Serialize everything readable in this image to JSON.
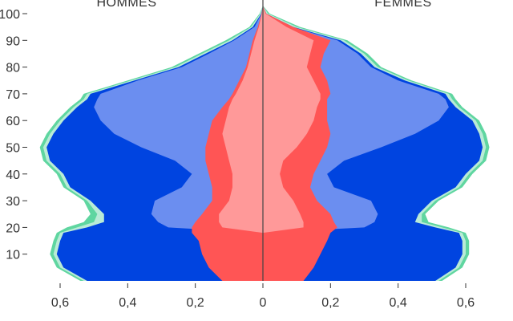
{
  "chart_data": {
    "type": "area",
    "headers": {
      "left": "HOMMES",
      "right": "FEMMES"
    },
    "y_ticks": [
      {
        "value": 10,
        "label": "10"
      },
      {
        "value": 20,
        "label": "20"
      },
      {
        "value": 30,
        "label": "30"
      },
      {
        "value": 40,
        "label": "40"
      },
      {
        "value": 50,
        "label": "50"
      },
      {
        "value": 60,
        "label": "60"
      },
      {
        "value": 70,
        "label": "70"
      },
      {
        "value": 80,
        "label": "80"
      },
      {
        "value": 90,
        "label": "90"
      },
      {
        "value": 100,
        "label": "100"
      }
    ],
    "x_ticks": [
      {
        "value": -0.6,
        "label": "0,6"
      },
      {
        "value": -0.4,
        "label": "0,4"
      },
      {
        "value": -0.2,
        "label": "0,2"
      },
      {
        "value": 0,
        "label": "0"
      },
      {
        "value": 0.2,
        "label": "0,2"
      },
      {
        "value": 0.4,
        "label": "0,4"
      },
      {
        "value": 0.6,
        "label": "0,6"
      }
    ],
    "ylim": [
      0,
      100
    ],
    "xlim": [
      -0.6,
      0.6
    ],
    "ages": [
      0,
      5,
      10,
      15,
      18,
      20,
      22,
      25,
      30,
      35,
      40,
      45,
      50,
      55,
      60,
      65,
      68,
      70,
      75,
      80,
      85,
      90,
      95,
      100,
      103
    ],
    "layers": [
      {
        "key": "outer",
        "color": "#5fd6a0",
        "male": [
          0.54,
          0.61,
          0.63,
          0.62,
          0.61,
          0.58,
          0.53,
          0.51,
          0.53,
          0.59,
          0.61,
          0.65,
          0.66,
          0.64,
          0.61,
          0.57,
          0.54,
          0.53,
          0.4,
          0.27,
          0.19,
          0.11,
          0.04,
          0.01,
          0.0
        ],
        "female": [
          0.53,
          0.59,
          0.61,
          0.61,
          0.6,
          0.55,
          0.49,
          0.48,
          0.52,
          0.59,
          0.62,
          0.66,
          0.67,
          0.66,
          0.64,
          0.59,
          0.57,
          0.56,
          0.44,
          0.35,
          0.31,
          0.25,
          0.11,
          0.02,
          0.0
        ]
      },
      {
        "key": "light-green",
        "color": "#b9ebd6",
        "male": [
          0.53,
          0.6,
          0.62,
          0.61,
          0.6,
          0.55,
          0.5,
          0.49,
          0.52,
          0.58,
          0.6,
          0.64,
          0.65,
          0.63,
          0.6,
          0.56,
          0.53,
          0.52,
          0.39,
          0.26,
          0.18,
          0.1,
          0.035,
          0.008,
          0.0
        ],
        "female": [
          0.52,
          0.58,
          0.6,
          0.6,
          0.59,
          0.53,
          0.47,
          0.47,
          0.51,
          0.58,
          0.61,
          0.65,
          0.66,
          0.65,
          0.63,
          0.58,
          0.56,
          0.55,
          0.43,
          0.34,
          0.3,
          0.24,
          0.1,
          0.015,
          0.0
        ]
      },
      {
        "key": "blue",
        "color": "#0044e0",
        "male": [
          0.52,
          0.59,
          0.61,
          0.6,
          0.59,
          0.52,
          0.47,
          0.47,
          0.51,
          0.57,
          0.59,
          0.63,
          0.64,
          0.62,
          0.59,
          0.55,
          0.52,
          0.51,
          0.38,
          0.25,
          0.17,
          0.09,
          0.03,
          0.005,
          0.0
        ],
        "female": [
          0.51,
          0.57,
          0.59,
          0.59,
          0.58,
          0.51,
          0.45,
          0.46,
          0.5,
          0.57,
          0.6,
          0.64,
          0.65,
          0.64,
          0.62,
          0.57,
          0.55,
          0.54,
          0.42,
          0.33,
          0.29,
          0.23,
          0.09,
          0.01,
          0.0
        ]
      },
      {
        "key": "light-blue",
        "color": "#6b8ef0",
        "male": [
          0.0,
          0.0,
          0.0,
          0.0,
          0.0,
          0.28,
          0.31,
          0.33,
          0.32,
          0.24,
          0.21,
          0.26,
          0.36,
          0.44,
          0.48,
          0.5,
          0.49,
          0.48,
          0.37,
          0.24,
          0.16,
          0.085,
          0.025,
          0.004,
          0.0
        ],
        "female": [
          0.0,
          0.0,
          0.0,
          0.0,
          0.0,
          0.3,
          0.33,
          0.34,
          0.32,
          0.21,
          0.19,
          0.24,
          0.35,
          0.45,
          0.52,
          0.55,
          0.54,
          0.52,
          0.4,
          0.32,
          0.28,
          0.22,
          0.085,
          0.008,
          0.0
        ]
      },
      {
        "key": "red",
        "color": "#ff5555",
        "male": [
          0.12,
          0.16,
          0.18,
          0.19,
          0.21,
          0.21,
          0.2,
          0.18,
          0.15,
          0.15,
          0.16,
          0.17,
          0.17,
          0.16,
          0.15,
          0.12,
          0.1,
          0.09,
          0.07,
          0.05,
          0.04,
          0.03,
          0.015,
          0.004,
          0.0
        ],
        "female": [
          0.12,
          0.15,
          0.17,
          0.19,
          0.2,
          0.22,
          0.21,
          0.2,
          0.16,
          0.14,
          0.15,
          0.17,
          0.19,
          0.2,
          0.19,
          0.19,
          0.19,
          0.2,
          0.19,
          0.17,
          0.18,
          0.2,
          0.09,
          0.01,
          0.0
        ]
      },
      {
        "key": "pink",
        "color": "#ff9999",
        "male": [
          0.0,
          0.0,
          0.0,
          0.0,
          0.0,
          0.12,
          0.13,
          0.13,
          0.1,
          0.09,
          0.09,
          0.1,
          0.11,
          0.12,
          0.11,
          0.1,
          0.09,
          0.08,
          0.06,
          0.045,
          0.035,
          0.025,
          0.012,
          0.003,
          0.0
        ],
        "female": [
          0.0,
          0.0,
          0.0,
          0.0,
          0.0,
          0.12,
          0.12,
          0.11,
          0.09,
          0.06,
          0.05,
          0.06,
          0.1,
          0.13,
          0.15,
          0.16,
          0.17,
          0.17,
          0.15,
          0.13,
          0.14,
          0.15,
          0.07,
          0.008,
          0.0
        ]
      }
    ],
    "axis_line_color": "#444444",
    "grid": false,
    "legend": "none"
  }
}
